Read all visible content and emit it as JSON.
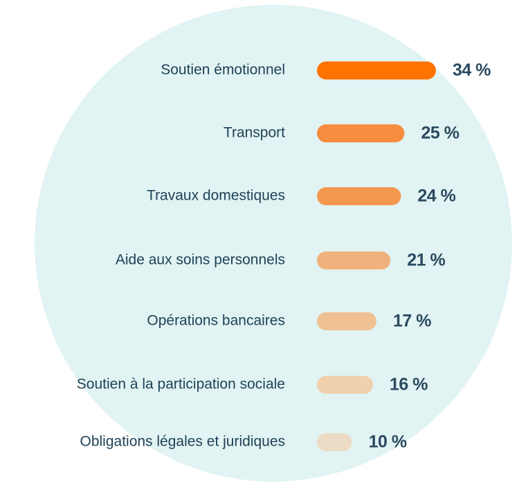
{
  "chart_data": {
    "type": "bar",
    "orientation": "horizontal",
    "categories": [
      "Soutien émotionnel",
      "Transport",
      "Travaux domestiques",
      "Aide aux soins personnels",
      "Opérations bancaires",
      "Soutien à la participation sociale",
      "Obligations légales et juridiques"
    ],
    "values": [
      34,
      25,
      24,
      21,
      17,
      16,
      10
    ],
    "value_labels": [
      "34 %",
      "25 %",
      "24 %",
      "21 %",
      "17 %",
      "16 %",
      "10 %"
    ],
    "colors": [
      "#ff7300",
      "#f78d3f",
      "#f5984f",
      "#f0b17c",
      "#f0c193",
      "#f0d0ad",
      "#ecdcc5"
    ]
  }
}
